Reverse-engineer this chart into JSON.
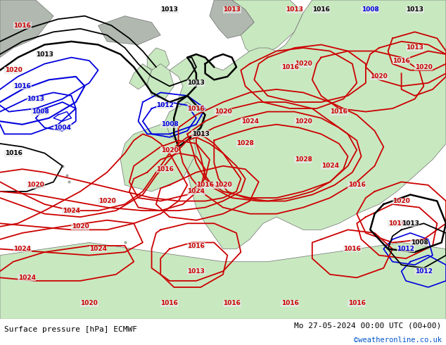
{
  "title_left": "Surface pressure [hPa] ECMWF",
  "title_right": "Mo 27-05-2024 00:00 UTC (00+00)",
  "credit": "©weatheronline.co.uk",
  "sea_color": "#e8e8e8",
  "land_color_main": "#c8e8c0",
  "land_color_scan": "#c8e8c0",
  "land_color_gray": "#b0b8b0",
  "footer_bg": "#ffffff",
  "figsize": [
    6.34,
    4.9
  ],
  "dpi": 100
}
